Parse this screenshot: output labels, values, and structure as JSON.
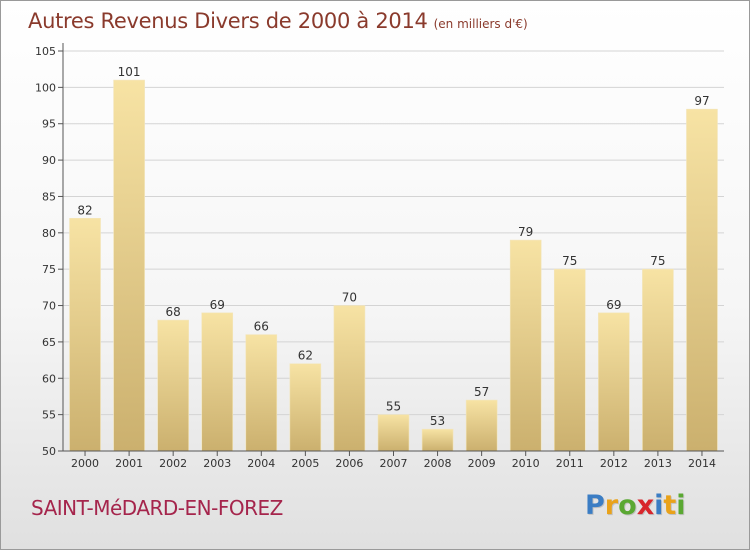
{
  "header": {
    "title": "Autres Revenus Divers de 2000 à 2014",
    "subtitle": "(en milliers d'€)"
  },
  "footer": {
    "commune": "SAINT-MéDARD-EN-FOREZ",
    "brand": "Proxiti",
    "brand_colors": [
      "#3b7dc4",
      "#e9a21a",
      "#5aa832",
      "#d8262c",
      "#3b7dc4",
      "#e9a21a",
      "#5aa832"
    ]
  },
  "colors": {
    "bar_light": "#f7e3a4",
    "bar_dark": "#cbb06e",
    "grid": "#d4d4d4",
    "axis": "#555555"
  },
  "chart_data": {
    "type": "bar",
    "title": "Autres Revenus Divers de 2000 à 2014",
    "subtitle": "(en milliers d'€)",
    "categories": [
      "2000",
      "2001",
      "2002",
      "2003",
      "2004",
      "2005",
      "2006",
      "2007",
      "2008",
      "2009",
      "2010",
      "2011",
      "2012",
      "2013",
      "2014"
    ],
    "values": [
      82,
      101,
      68,
      69,
      66,
      62,
      70,
      55,
      53,
      57,
      79,
      75,
      69,
      75,
      97
    ],
    "ylim": [
      50,
      105
    ],
    "yticks": [
      50,
      55,
      60,
      65,
      70,
      75,
      80,
      85,
      90,
      95,
      100,
      105
    ],
    "grid": true,
    "xlabel": "",
    "ylabel": ""
  }
}
